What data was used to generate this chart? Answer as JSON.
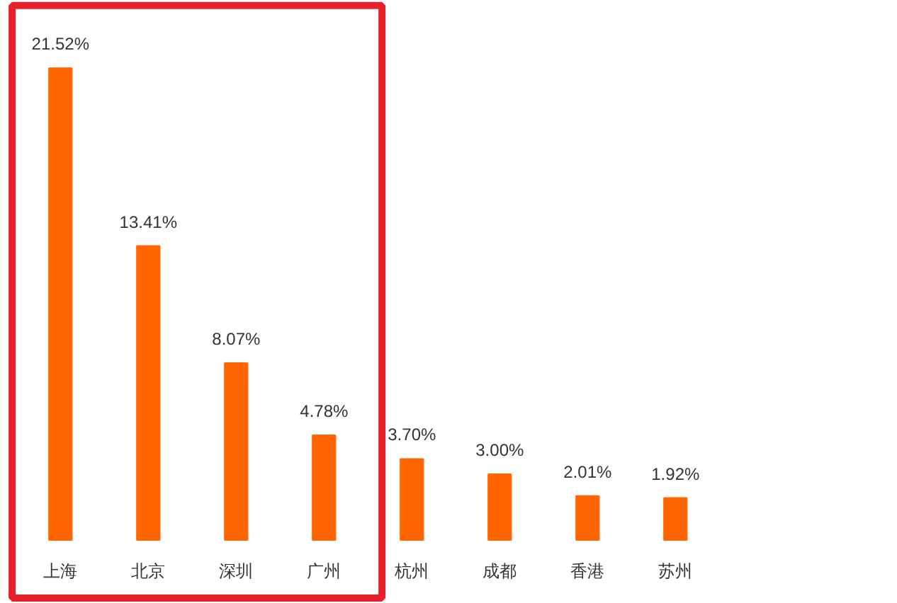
{
  "chart_data": {
    "type": "bar",
    "categories": [
      "上海",
      "北京",
      "深圳",
      "广州",
      "杭州",
      "成都",
      "香港",
      "苏州"
    ],
    "values": [
      21.52,
      13.41,
      8.07,
      4.78,
      3.7,
      3.0,
      2.01,
      1.92
    ],
    "value_labels": [
      "21.52%",
      "13.41%",
      "8.07%",
      "4.78%",
      "3.70%",
      "3.00%",
      "2.01%",
      "1.92%"
    ],
    "color": "#ff6600",
    "grid": false
  }
}
